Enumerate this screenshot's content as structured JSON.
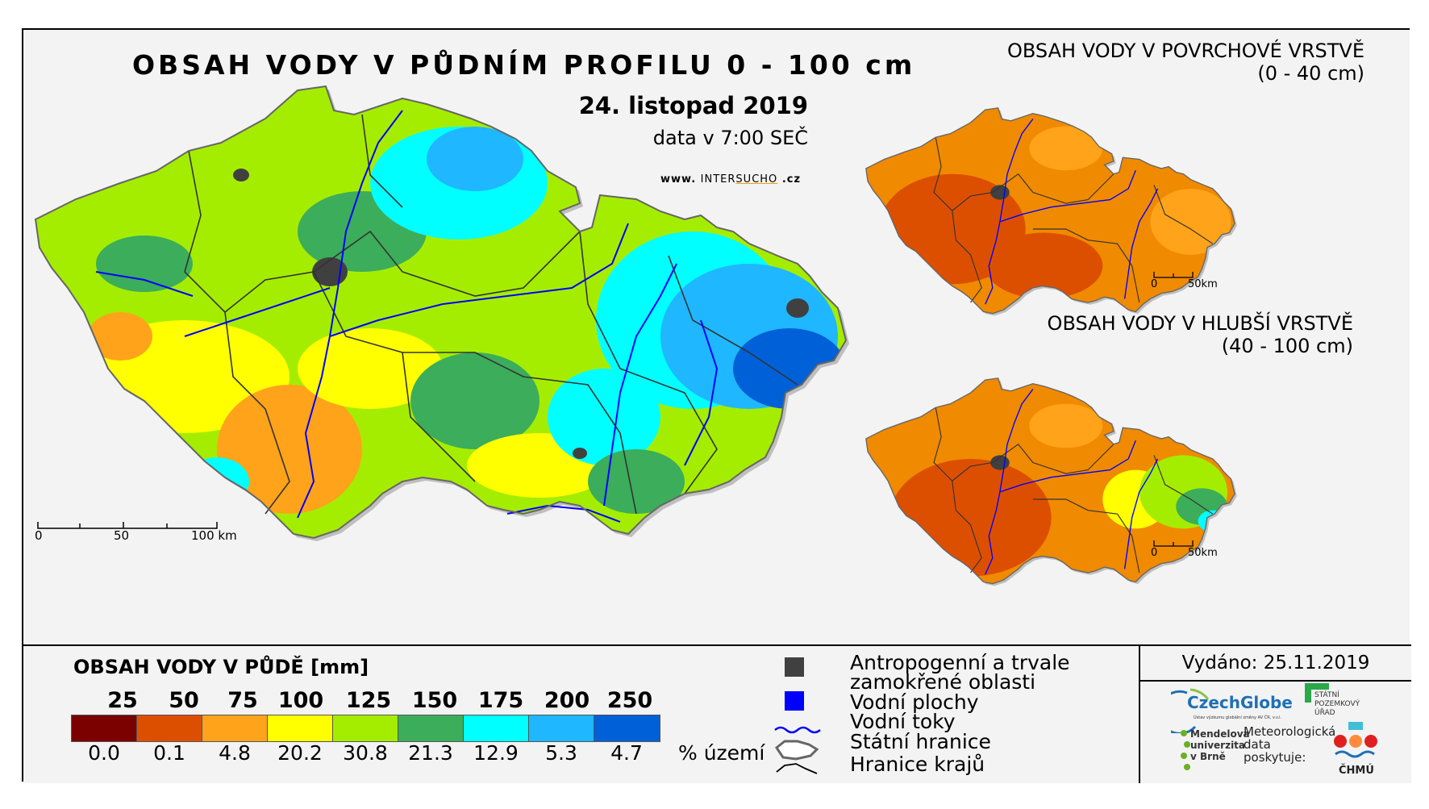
{
  "header": {
    "main_title": "OBSAH VODY V PŮDNÍM PROFILU 0 - 100 cm",
    "date": "24. listopad 2019",
    "time": "data v 7:00 SEČ",
    "web_prefix": "www.",
    "web_inter": "INTER",
    "web_sucho": "SUCHO",
    "web_suffix": ".cz"
  },
  "maps": {
    "main": {
      "scale_labels": [
        "0",
        "50",
        "100 km"
      ]
    },
    "surface": {
      "title": "OBSAH VODY V POVRCHOVÉ VRSTVĚ",
      "subtitle": "(0 - 40 cm)",
      "scale_labels": [
        "0",
        "50km"
      ]
    },
    "deep": {
      "title": "OBSAH VODY V HLUBŠÍ VRSTVĚ",
      "subtitle": "(40 - 100 cm)",
      "scale_labels": [
        "0",
        "50km"
      ]
    }
  },
  "legend": {
    "title": "OBSAH VODY V PŮDĚ [mm]",
    "class_limits": [
      "25",
      "50",
      "75",
      "100",
      "125",
      "150",
      "175",
      "200",
      "250"
    ],
    "colors": [
      "#7b0000",
      "#dd4f00",
      "#ffa31a",
      "#ffff00",
      "#a5ed00",
      "#3cad5a",
      "#00ffff",
      "#1fb7ff",
      "#0060d8"
    ],
    "percentages": [
      "0.0",
      "0.1",
      "4.8",
      "20.2",
      "30.8",
      "21.3",
      "12.9",
      "5.3",
      "4.7"
    ],
    "percent_unit": "% území"
  },
  "symbols": {
    "anthropogenic_1": "Antropogenní a trvale",
    "anthropogenic_2": "zamokřené oblasti",
    "water_bodies": "Vodní plochy",
    "rivers": "Vodní toky",
    "state_border": "Státní hranice",
    "region_border": "Hranice krajů",
    "anthropogenic_color": "#404040",
    "water_color": "#0000ff"
  },
  "issued": {
    "label": "Vydáno: 25.11.2019",
    "czechglobe": "CzechGlobe",
    "czechglobe_sub": "Ústav výzkumu globální změny AV ČR, v.v.i.",
    "spu_1": "STÁTNÍ",
    "spu_2": "POZEMKOVÝ",
    "spu_3": "ÚŘAD",
    "mendel_1": "Mendelova",
    "mendel_2": "univerzita",
    "mendel_3": "v Brně",
    "meteo_1": "Meteorologická",
    "meteo_2": "data",
    "meteo_3": "poskytuje:",
    "chmu": "ČHMÚ"
  }
}
